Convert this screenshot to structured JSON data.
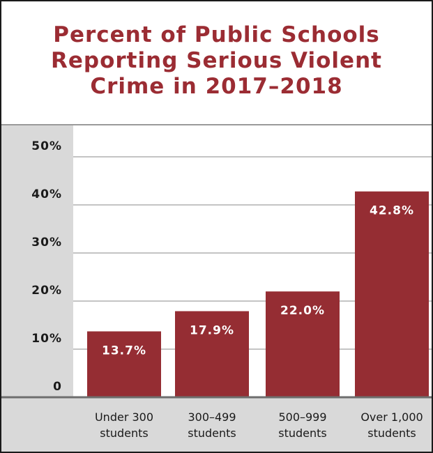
{
  "chart_data": {
    "type": "bar",
    "title_lines": [
      "Percent of Public Schools",
      "Reporting Serious Violent",
      "Crime in 2017–2018"
    ],
    "categories": [
      [
        "Under 300",
        "students"
      ],
      [
        "300–499",
        "students"
      ],
      [
        "500–999",
        "students"
      ],
      [
        "Over 1,000",
        "students"
      ]
    ],
    "values": [
      13.7,
      17.9,
      22.0,
      42.8
    ],
    "value_labels": [
      "13.7%",
      "17.9%",
      "22.0%",
      "42.8%"
    ],
    "y_ticks": [
      {
        "value": 0,
        "label": "0"
      },
      {
        "value": 10,
        "label": "10%"
      },
      {
        "value": 20,
        "label": "20%"
      },
      {
        "value": 30,
        "label": "30%"
      },
      {
        "value": 40,
        "label": "40%"
      },
      {
        "value": 50,
        "label": "50%"
      }
    ],
    "ylim": [
      0,
      55
    ],
    "grid": true,
    "colors": {
      "bar": "#952d33",
      "title": "#9b2c33",
      "axis_band": "#d9d9d9",
      "grid": "#8a8a8a",
      "baseline": "#6e6e6e"
    }
  }
}
